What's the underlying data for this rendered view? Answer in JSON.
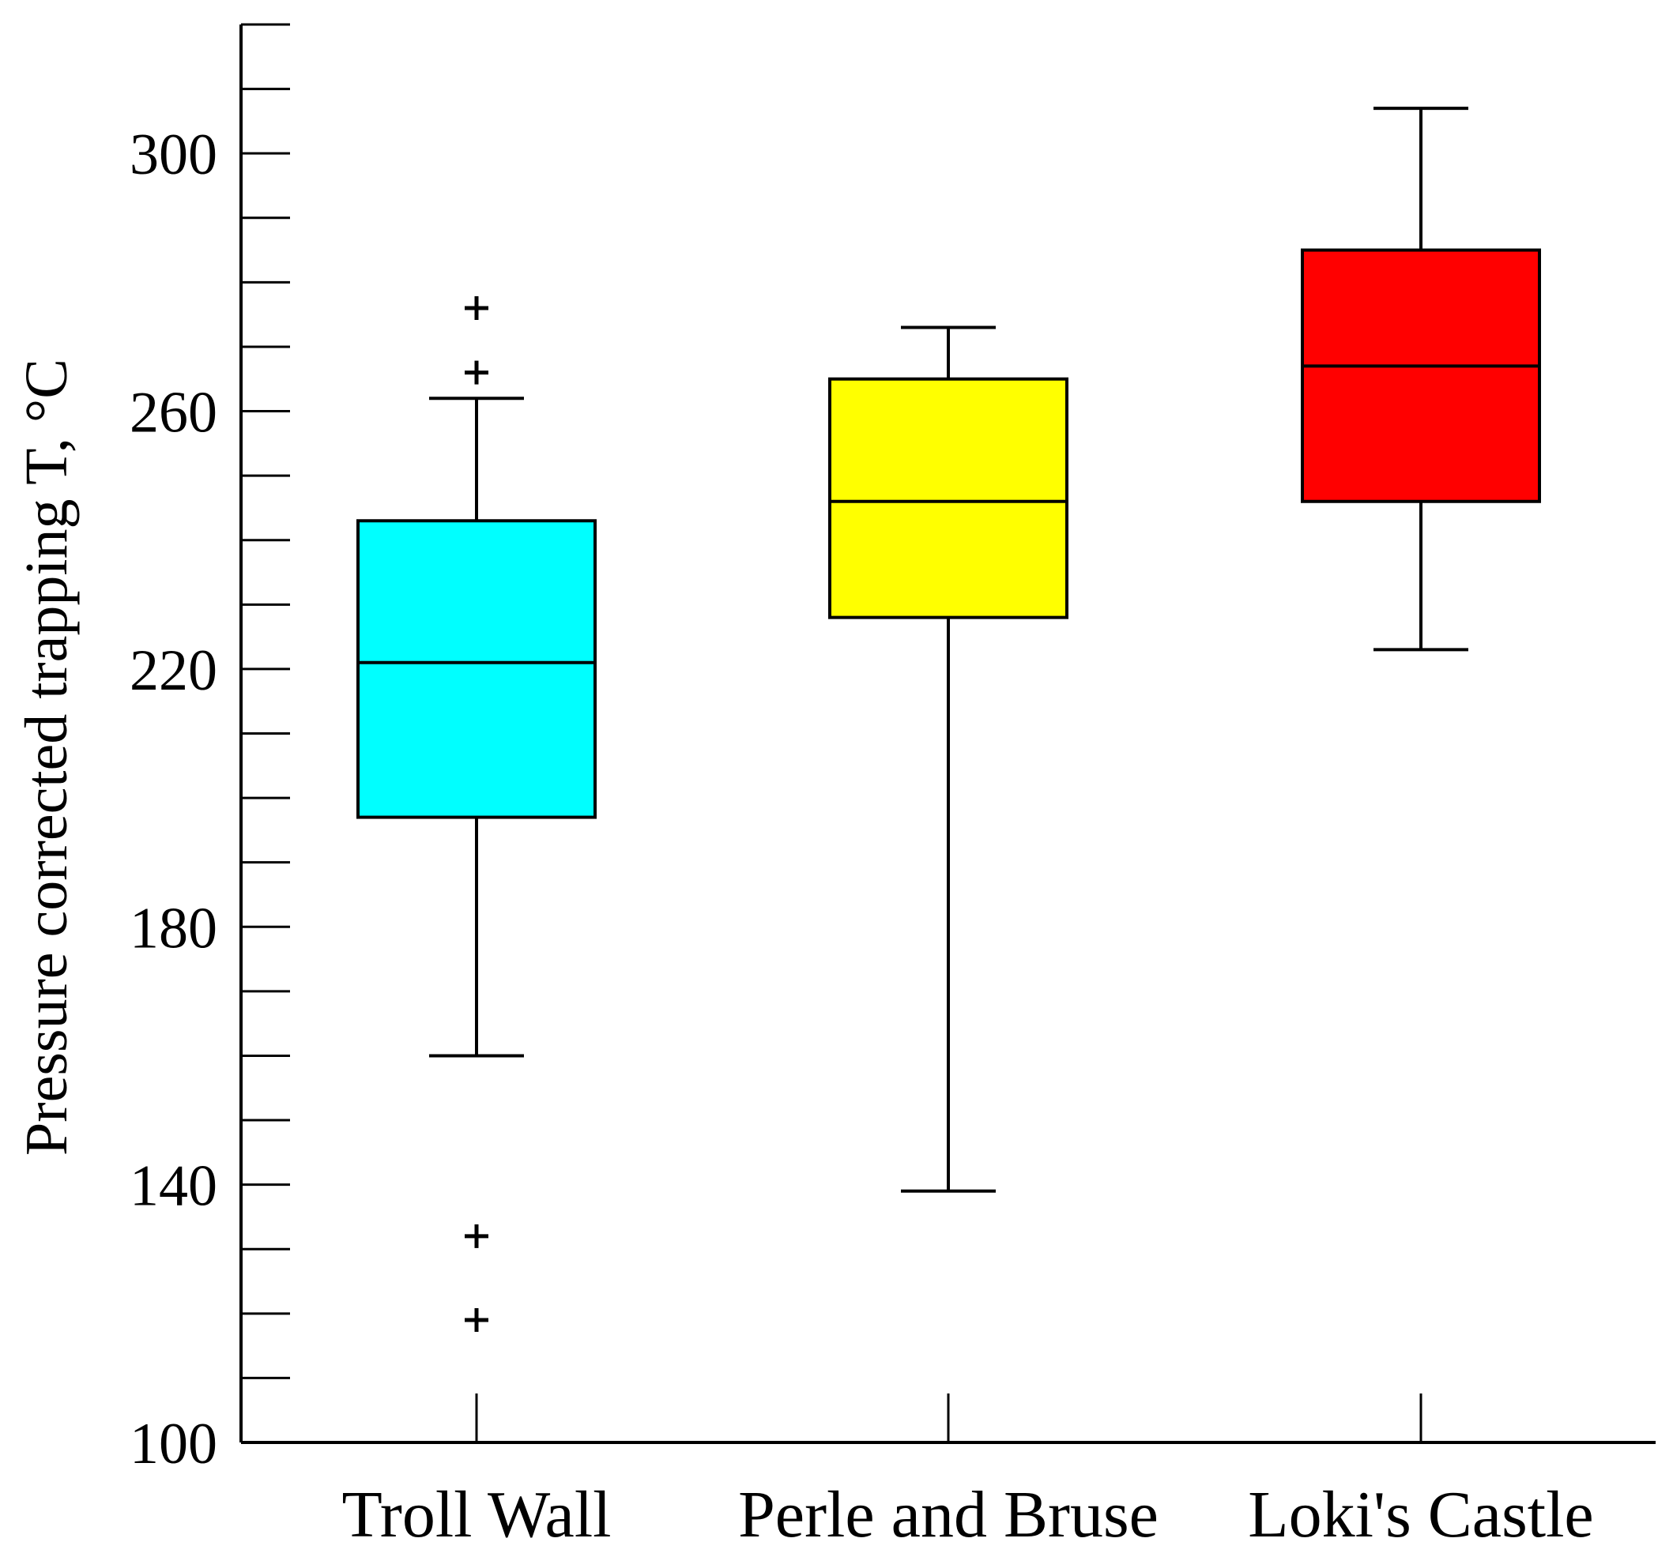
{
  "chart_data": {
    "type": "box",
    "ylabel": "Pressure corrected trapping T, °C",
    "xlabel": "",
    "ylim": [
      100,
      320
    ],
    "yticks_major": [
      100,
      140,
      180,
      220,
      260,
      300
    ],
    "ytick_minor_step": 10,
    "grid": false,
    "categories": [
      "Troll Wall",
      "Perle and Bruse",
      "Loki's Castle"
    ],
    "series": [
      {
        "category": "Troll Wall",
        "color": "#00FFFF",
        "whisker_low": 160,
        "q1": 197,
        "median": 221,
        "q3": 243,
        "whisker_high": 262,
        "outliers": [
          276,
          266,
          132,
          119
        ]
      },
      {
        "category": "Perle and Bruse",
        "color": "#FFFF00",
        "whisker_low": 139,
        "q1": 228,
        "median": 246,
        "q3": 265,
        "whisker_high": 273,
        "outliers": []
      },
      {
        "category": "Loki's Castle",
        "color": "#FF0000",
        "whisker_low": 223,
        "q1": 246,
        "median": 267,
        "q3": 285,
        "whisker_high": 307,
        "outliers": []
      }
    ]
  }
}
